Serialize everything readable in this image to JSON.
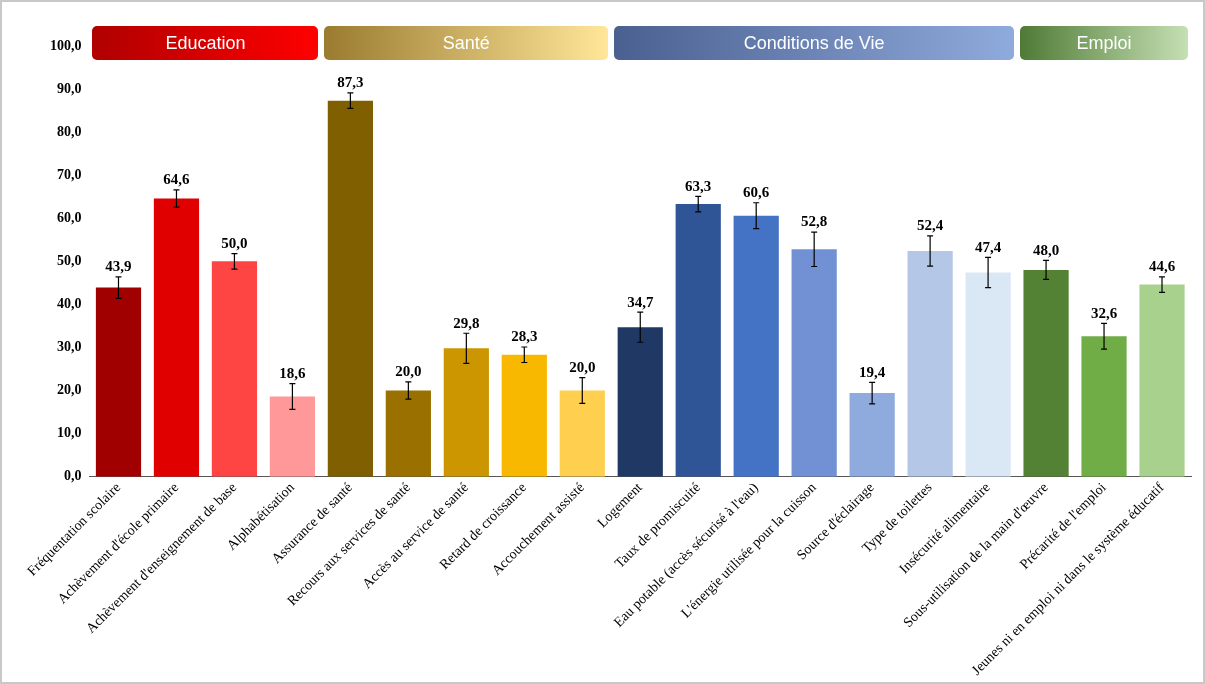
{
  "chart_data": {
    "type": "bar",
    "categories": [
      "Fréquentation scolaire",
      "Achèvement d'école primaire",
      "Achèvement d'enseignement de base",
      "Alphabétisation",
      "Assurance de santé",
      "Recours aux services de santé",
      "Accès au service de santé",
      "Retard de croissance",
      "Accouchement assisté",
      "Logement",
      "Taux de promiscuité",
      "Eau potable (accès sécurisé à l'eau)",
      "L'énergie utilisée pour la cuisson",
      "Source d'éclairage",
      "Type de toilettes",
      "Insécurité alimentaire",
      "Sous-utilisation de la main d'œuvre",
      "Précarité de l'emploi",
      "Jeunes ni en emploi ni dans le système éducatif"
    ],
    "values": [
      43.9,
      64.6,
      50.0,
      18.6,
      87.3,
      20.0,
      29.8,
      28.3,
      20.0,
      34.7,
      63.3,
      60.6,
      52.8,
      19.4,
      52.4,
      47.4,
      48.0,
      32.6,
      44.6
    ],
    "value_labels": [
      "43,9",
      "64,6",
      "50,0",
      "18,6",
      "87,3",
      "20,0",
      "29,8",
      "28,3",
      "20,0",
      "34,7",
      "63,3",
      "60,6",
      "52,8",
      "19,4",
      "52,4",
      "47,4",
      "48,0",
      "32,6",
      "44,6"
    ],
    "errors": [
      2.5,
      2,
      1.8,
      3,
      1.8,
      2,
      3.5,
      1.8,
      3,
      3.5,
      1.8,
      3,
      4,
      2.5,
      3.5,
      3.5,
      2.2,
      3,
      1.8
    ],
    "colors": [
      "#a00000",
      "#e00000",
      "#ff4444",
      "#ff9999",
      "#7f5f00",
      "#9a7000",
      "#cc9600",
      "#f9b800",
      "#ffcf50",
      "#1f3864",
      "#2f5597",
      "#4472c4",
      "#7291d4",
      "#8faadc",
      "#b4c7e7",
      "#dae7f5",
      "#548235",
      "#70ad47",
      "#a9d18e"
    ],
    "ylim": [
      0,
      100
    ],
    "yticks": [
      {
        "value": 0,
        "label": "0,0"
      },
      {
        "value": 10,
        "label": "10,0"
      },
      {
        "value": 20,
        "label": "20,0"
      },
      {
        "value": 30,
        "label": "30,0"
      },
      {
        "value": 40,
        "label": "40,0"
      },
      {
        "value": 50,
        "label": "50,0"
      },
      {
        "value": 60,
        "label": "60,0"
      },
      {
        "value": 70,
        "label": "70,0"
      },
      {
        "value": 80,
        "label": "80,0"
      },
      {
        "value": 90,
        "label": "90,0"
      },
      {
        "value": 100,
        "label": "100,0"
      }
    ],
    "annotations": [
      "Education",
      "Santé",
      "Conditions de Vie",
      "Emploi"
    ],
    "grid": false,
    "legend": false
  }
}
